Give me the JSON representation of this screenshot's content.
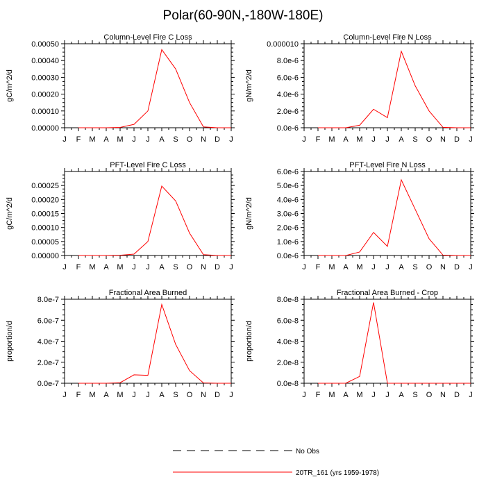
{
  "title": "Polar(60-90N,-180W-180E)",
  "months": [
    "J",
    "F",
    "M",
    "A",
    "M",
    "J",
    "J",
    "A",
    "S",
    "O",
    "N",
    "D",
    "J"
  ],
  "colors": {
    "model": "#ff0000",
    "obs": "#000000",
    "axis": "#000000"
  },
  "legend": {
    "obs_label": "No Obs",
    "model_label": "20TR_161 (yrs 1959-1978)"
  },
  "chart_data": [
    {
      "type": "line",
      "title": "Column-Level Fire C Loss",
      "ylabel": "gC/m^2/d",
      "ylim": [
        0,
        0.0005
      ],
      "yticks": [
        0,
        0.0001,
        0.0002,
        0.0003,
        0.0004,
        0.0005
      ],
      "ytick_labels": [
        "0.00000",
        "0.00010",
        "0.00020",
        "0.00030",
        "0.00040",
        "0.00050"
      ],
      "x": [
        1,
        2,
        3,
        4,
        5,
        6,
        7,
        8,
        9,
        10,
        11,
        12
      ],
      "series": [
        {
          "name": "20TR_161 (yrs 1959-1978)",
          "values": [
            0,
            0,
            0,
            2e-06,
            2e-05,
            0.0001,
            0.000465,
            0.00035,
            0.00015,
            5e-06,
            0,
            0
          ]
        }
      ]
    },
    {
      "type": "line",
      "title": "Column-Level Fire N Loss",
      "ylabel": "gN/m^2/d",
      "ylim": [
        0,
        1e-05
      ],
      "yticks": [
        0,
        2e-06,
        4e-06,
        6e-06,
        8e-06,
        1e-05
      ],
      "ytick_labels": [
        "0.0e-6",
        "2.0e-6",
        "4.0e-6",
        "6.0e-6",
        "8.0e-6",
        "0.000010"
      ],
      "x": [
        1,
        2,
        3,
        4,
        5,
        6,
        7,
        8,
        9,
        10,
        11,
        12
      ],
      "series": [
        {
          "name": "20TR_161 (yrs 1959-1978)",
          "values": [
            0,
            0,
            0,
            3e-07,
            2.2e-06,
            1.2e-06,
            9.1e-06,
            5e-06,
            2e-06,
            5e-08,
            0,
            0
          ]
        }
      ]
    },
    {
      "type": "line",
      "title": "PFT-Level Fire C Loss",
      "ylabel": "gC/m^2/d",
      "ylim": [
        0,
        0.0003
      ],
      "yticks": [
        0,
        5e-05,
        0.0001,
        0.00015,
        0.0002,
        0.00025
      ],
      "ytick_labels": [
        "0.00000",
        "0.00005",
        "0.00010",
        "0.00015",
        "0.00020",
        "0.00025"
      ],
      "x": [
        1,
        2,
        3,
        4,
        5,
        6,
        7,
        8,
        9,
        10,
        11,
        12
      ],
      "series": [
        {
          "name": "20TR_161 (yrs 1959-1978)",
          "values": [
            0,
            0,
            0,
            1e-06,
            5e-06,
            5e-05,
            0.000248,
            0.000195,
            8e-05,
            3e-06,
            0,
            0
          ]
        }
      ]
    },
    {
      "type": "line",
      "title": "PFT-Level Fire N Loss",
      "ylabel": "gN/m^2/d",
      "ylim": [
        0,
        6e-06
      ],
      "yticks": [
        0,
        1e-06,
        2e-06,
        3e-06,
        4e-06,
        5e-06,
        6e-06
      ],
      "ytick_labels": [
        "0.0e-6",
        "1.0e-6",
        "2.0e-6",
        "3.0e-6",
        "4.0e-6",
        "5.0e-6",
        "6.0e-6"
      ],
      "x": [
        1,
        2,
        3,
        4,
        5,
        6,
        7,
        8,
        9,
        10,
        11,
        12
      ],
      "series": [
        {
          "name": "20TR_161 (yrs 1959-1978)",
          "values": [
            0,
            0,
            0,
            2.5e-07,
            1.65e-06,
            6.5e-07,
            5.4e-06,
            3.3e-06,
            1.2e-06,
            3e-08,
            0,
            0
          ]
        }
      ]
    },
    {
      "type": "line",
      "title": "Fractional Area Burned",
      "ylabel": "proportion/d",
      "ylim": [
        0,
        8e-07
      ],
      "yticks": [
        0,
        2e-07,
        4e-07,
        6e-07,
        8e-07
      ],
      "ytick_labels": [
        "0.0e-7",
        "2.0e-7",
        "4.0e-7",
        "6.0e-7",
        "8.0e-7"
      ],
      "x": [
        1,
        2,
        3,
        4,
        5,
        6,
        7,
        8,
        9,
        10,
        11,
        12
      ],
      "series": [
        {
          "name": "20TR_161 (yrs 1959-1978)",
          "values": [
            0,
            0,
            0,
            5e-09,
            8e-08,
            7.5e-08,
            7.5e-07,
            3.7e-07,
            1.2e-07,
            3e-09,
            0,
            0
          ]
        }
      ]
    },
    {
      "type": "line",
      "title": "Fractional Area Burned - Crop",
      "ylabel": "proportion/d",
      "ylim": [
        0,
        8e-08
      ],
      "yticks": [
        0,
        2e-08,
        4e-08,
        6e-08,
        8e-08
      ],
      "ytick_labels": [
        "0.0e-8",
        "2.0e-8",
        "4.0e-8",
        "6.0e-8",
        "8.0e-8"
      ],
      "x": [
        1,
        2,
        3,
        4,
        5,
        6,
        7,
        8,
        9,
        10,
        11,
        12
      ],
      "series": [
        {
          "name": "20TR_161 (yrs 1959-1978)",
          "values": [
            0,
            0,
            0,
            6.5e-09,
            7.7e-08,
            0,
            0,
            0,
            0,
            0,
            0,
            0
          ]
        }
      ]
    }
  ]
}
